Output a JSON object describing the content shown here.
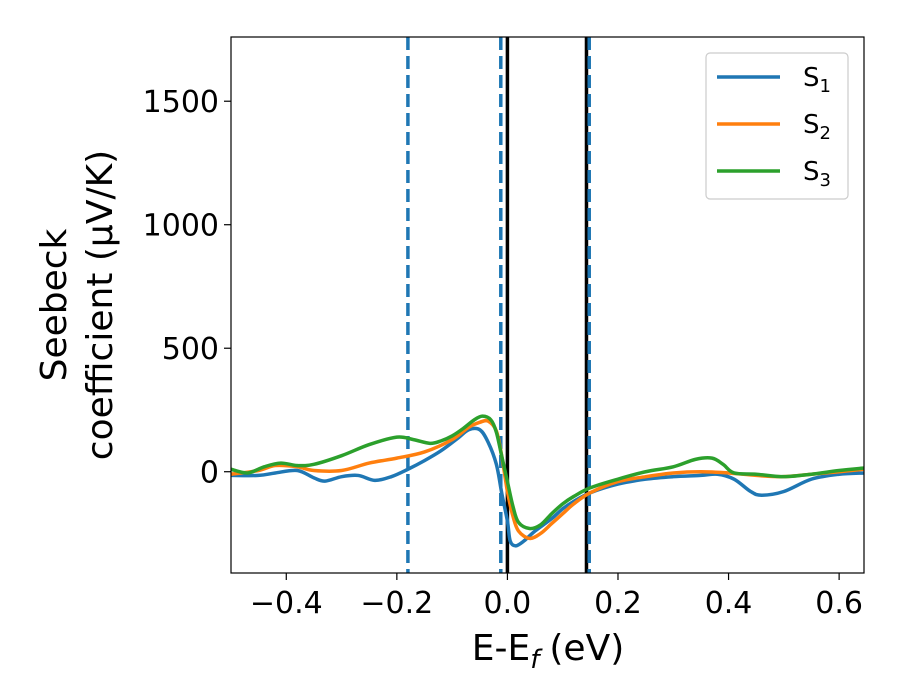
{
  "chart_data": {
    "type": "line",
    "xlabel": "E-E",
    "xlabel_sub": "f",
    "xlabel_unit": "(eV)",
    "ylabel_line1": "Seebeck",
    "ylabel_line2": "coefficient  (μV/K)",
    "xlim": [
      -0.5,
      0.645
    ],
    "ylim": [
      -410,
      1760
    ],
    "xticks": [
      -0.4,
      -0.2,
      0.0,
      0.2,
      0.4,
      0.6
    ],
    "xtick_labels": [
      "−0.4",
      "−0.2",
      "0.0",
      "0.2",
      "0.4",
      "0.6"
    ],
    "yticks": [
      0,
      500,
      1000,
      1500
    ],
    "ytick_labels": [
      "0",
      "500",
      "1000",
      "1500"
    ],
    "grid": false,
    "legend_position": "top-right",
    "series": [
      {
        "name": "S",
        "name_sub": "1",
        "color": "#1f77b4",
        "x": [
          -0.5,
          -0.45,
          -0.42,
          -0.38,
          -0.35,
          -0.33,
          -0.3,
          -0.27,
          -0.24,
          -0.21,
          -0.18,
          -0.15,
          -0.12,
          -0.09,
          -0.07,
          -0.05,
          -0.035,
          -0.02,
          -0.01,
          0.0,
          0.005,
          0.015,
          0.03,
          0.05,
          0.08,
          0.1,
          0.12,
          0.15,
          0.2,
          0.25,
          0.3,
          0.35,
          0.38,
          0.41,
          0.44,
          0.46,
          0.5,
          0.55,
          0.6,
          0.645
        ],
        "y": [
          -15,
          -15,
          -5,
          5,
          -25,
          -38,
          -20,
          -15,
          -35,
          -20,
          10,
          45,
          85,
          135,
          170,
          170,
          120,
          30,
          -90,
          -200,
          -280,
          -300,
          -280,
          -240,
          -190,
          -150,
          -120,
          -85,
          -50,
          -30,
          -20,
          -15,
          -10,
          -30,
          -80,
          -95,
          -80,
          -30,
          -10,
          -5
        ]
      },
      {
        "name": "S",
        "name_sub": "2",
        "color": "#ff7f0e",
        "x": [
          -0.5,
          -0.45,
          -0.42,
          -0.38,
          -0.35,
          -0.3,
          -0.25,
          -0.2,
          -0.15,
          -0.1,
          -0.07,
          -0.05,
          -0.035,
          -0.02,
          -0.01,
          0.0,
          0.01,
          0.02,
          0.04,
          0.06,
          0.08,
          0.1,
          0.12,
          0.15,
          0.2,
          0.25,
          0.3,
          0.35,
          0.4,
          0.45,
          0.5,
          0.55,
          0.6,
          0.645
        ],
        "y": [
          -10,
          5,
          25,
          20,
          5,
          5,
          35,
          55,
          80,
          130,
          180,
          200,
          205,
          165,
          60,
          -80,
          -180,
          -240,
          -270,
          -250,
          -210,
          -170,
          -130,
          -85,
          -40,
          -20,
          -5,
          0,
          -5,
          -15,
          -20,
          -10,
          0,
          10
        ]
      },
      {
        "name": "S",
        "name_sub": "3",
        "color": "#2ca02c",
        "x": [
          -0.5,
          -0.47,
          -0.44,
          -0.41,
          -0.38,
          -0.35,
          -0.3,
          -0.25,
          -0.2,
          -0.17,
          -0.14,
          -0.12,
          -0.1,
          -0.08,
          -0.06,
          -0.045,
          -0.03,
          -0.02,
          -0.01,
          0.0,
          0.01,
          0.02,
          0.04,
          0.06,
          0.08,
          0.1,
          0.12,
          0.15,
          0.2,
          0.25,
          0.3,
          0.34,
          0.37,
          0.39,
          0.41,
          0.45,
          0.5,
          0.55,
          0.6,
          0.645
        ],
        "y": [
          10,
          -5,
          20,
          35,
          25,
          30,
          65,
          110,
          140,
          130,
          115,
          125,
          145,
          175,
          210,
          225,
          210,
          160,
          60,
          -40,
          -140,
          -205,
          -230,
          -215,
          -170,
          -130,
          -100,
          -65,
          -30,
          0,
          20,
          50,
          55,
          30,
          -5,
          -10,
          -20,
          -10,
          5,
          15
        ]
      }
    ],
    "vlines": [
      {
        "x": -0.18,
        "color": "#1f77b4",
        "style": "dashed"
      },
      {
        "x": -0.012,
        "color": "#1f77b4",
        "style": "dashed"
      },
      {
        "x": 0.0,
        "color": "#000000",
        "style": "solid"
      },
      {
        "x": 0.143,
        "color": "#000000",
        "style": "solid"
      },
      {
        "x": 0.148,
        "color": "#1f77b4",
        "style": "dashed"
      }
    ]
  }
}
